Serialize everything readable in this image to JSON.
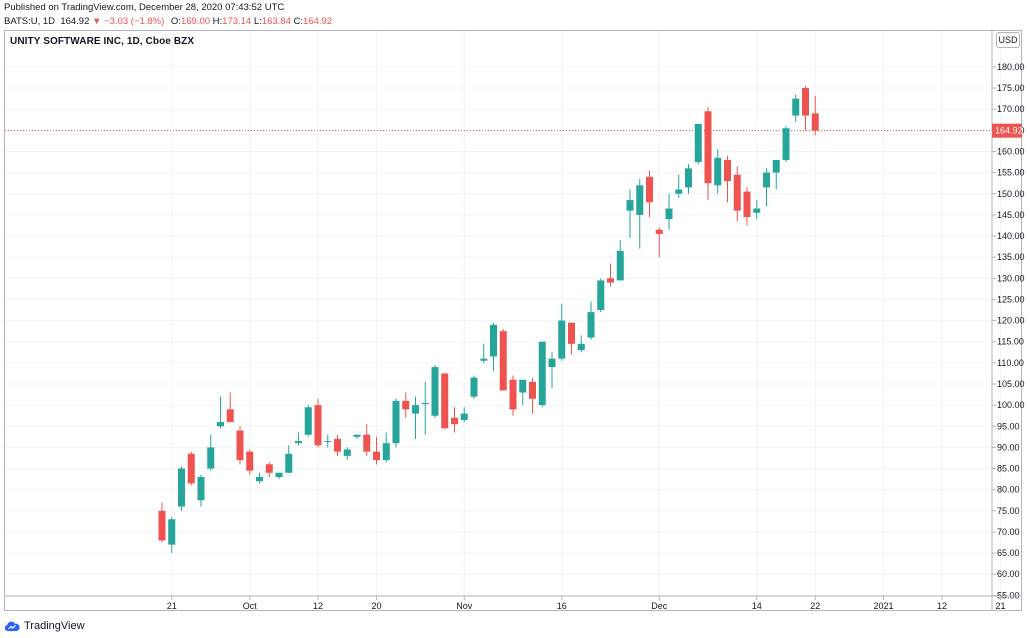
{
  "header": {
    "published": "Published on TradingView.com, December 28, 2020 07:43:52 UTC",
    "symbol": "BATS:U, 1D",
    "last": "164.92",
    "change": "−3.03 (−1.8%)",
    "o_label": "O:",
    "o_value": "169.00",
    "h_label": "H:",
    "h_value": "173.14",
    "l_label": "L:",
    "l_value": "163.84",
    "c_label": "C:",
    "c_value": "164.92"
  },
  "colors": {
    "up": "#26a69a",
    "down": "#ef5350",
    "grid": "#f0f3fa",
    "price_line": "#ef5350"
  },
  "chart_data": {
    "type": "candlestick",
    "title": "UNITY SOFTWARE INC, 1D, Cboe BZX",
    "currency": "USD",
    "last_price": 164.92,
    "last_price_label": "164.92",
    "ylim": [
      54,
      184
    ],
    "y_ticks": [
      55,
      60,
      65,
      70,
      75,
      80,
      85,
      90,
      95,
      100,
      105,
      110,
      115,
      120,
      125,
      130,
      135,
      140,
      145,
      150,
      155,
      160,
      165,
      170,
      175,
      180
    ],
    "y_tick_labels": [
      "55.00",
      "60.00",
      "65.00",
      "70.00",
      "75.00",
      "80.00",
      "85.00",
      "90.00",
      "95.00",
      "100.00",
      "105.00",
      "110.00",
      "115.00",
      "120.00",
      "125.00",
      "130.00",
      "135.00",
      "140.00",
      "145.00",
      "150.00",
      "155.00",
      "160.00",
      "165.00",
      "170.00",
      "175.00",
      "180.00"
    ],
    "x_ticks": [
      {
        "i": 1,
        "label": "21"
      },
      {
        "i": 9,
        "label": "Oct"
      },
      {
        "i": 16,
        "label": "12"
      },
      {
        "i": 22,
        "label": "20"
      },
      {
        "i": 31,
        "label": "Nov"
      },
      {
        "i": 41,
        "label": "16"
      },
      {
        "i": 51,
        "label": "Dec"
      },
      {
        "i": 61,
        "label": "14"
      },
      {
        "i": 67,
        "label": "22"
      },
      {
        "i": 74,
        "label": "2021"
      },
      {
        "i": 80,
        "label": "12"
      },
      {
        "i": 86,
        "label": "21"
      }
    ],
    "grid": true,
    "candles": [
      {
        "o": 75,
        "h": 77,
        "l": 67.5,
        "c": 68
      },
      {
        "o": 67,
        "h": 73.5,
        "l": 65,
        "c": 73
      },
      {
        "o": 76,
        "h": 85.5,
        "l": 75,
        "c": 85
      },
      {
        "o": 88.5,
        "h": 89,
        "l": 81,
        "c": 81.5
      },
      {
        "o": 77.5,
        "h": 83.5,
        "l": 76,
        "c": 83
      },
      {
        "o": 85,
        "h": 93,
        "l": 84.5,
        "c": 90
      },
      {
        "o": 95,
        "h": 102,
        "l": 94.5,
        "c": 96
      },
      {
        "o": 99,
        "h": 103,
        "l": 97,
        "c": 96
      },
      {
        "o": 94,
        "h": 95,
        "l": 86,
        "c": 87
      },
      {
        "o": 89,
        "h": 89.5,
        "l": 83.5,
        "c": 84.5
      },
      {
        "o": 82,
        "h": 84,
        "l": 81.5,
        "c": 83
      },
      {
        "o": 86,
        "h": 86.5,
        "l": 83,
        "c": 84
      },
      {
        "o": 83,
        "h": 84,
        "l": 82.5,
        "c": 84
      },
      {
        "o": 84,
        "h": 90.5,
        "l": 84,
        "c": 88.5
      },
      {
        "o": 91,
        "h": 93.5,
        "l": 90.5,
        "c": 91.5
      },
      {
        "o": 93,
        "h": 100,
        "l": 92.5,
        "c": 99.5
      },
      {
        "o": 100,
        "h": 101.5,
        "l": 90,
        "c": 90.5
      },
      {
        "o": 91.5,
        "h": 93,
        "l": 90,
        "c": 91.5
      },
      {
        "o": 92,
        "h": 93,
        "l": 88,
        "c": 89
      },
      {
        "o": 88,
        "h": 90,
        "l": 87,
        "c": 89.5
      },
      {
        "o": 92.5,
        "h": 93,
        "l": 92,
        "c": 93
      },
      {
        "o": 93,
        "h": 95.5,
        "l": 88,
        "c": 89
      },
      {
        "o": 89,
        "h": 92.5,
        "l": 86,
        "c": 87
      },
      {
        "o": 87,
        "h": 93.5,
        "l": 86.5,
        "c": 91
      },
      {
        "o": 91,
        "h": 101.5,
        "l": 90,
        "c": 101
      },
      {
        "o": 101,
        "h": 103,
        "l": 97,
        "c": 99
      },
      {
        "o": 98,
        "h": 102,
        "l": 92,
        "c": 100
      },
      {
        "o": 100.5,
        "h": 105.5,
        "l": 93,
        "c": 100.5
      },
      {
        "o": 97.5,
        "h": 109.5,
        "l": 97,
        "c": 109
      },
      {
        "o": 107.5,
        "h": 107.5,
        "l": 94.5,
        "c": 94.5
      },
      {
        "o": 97,
        "h": 99.5,
        "l": 93.5,
        "c": 95.5
      },
      {
        "o": 96.5,
        "h": 99.5,
        "l": 96,
        "c": 98
      },
      {
        "o": 102,
        "h": 107,
        "l": 101.5,
        "c": 106.5
      },
      {
        "o": 110.5,
        "h": 114.5,
        "l": 110,
        "c": 111
      },
      {
        "o": 111.5,
        "h": 119.5,
        "l": 108,
        "c": 119
      },
      {
        "o": 117.5,
        "h": 118,
        "l": 103.5,
        "c": 103.5
      },
      {
        "o": 106,
        "h": 107,
        "l": 97.5,
        "c": 99
      },
      {
        "o": 103,
        "h": 106,
        "l": 100,
        "c": 106
      },
      {
        "o": 105.5,
        "h": 106.5,
        "l": 98,
        "c": 101.5
      },
      {
        "o": 100,
        "h": 115,
        "l": 99.5,
        "c": 115
      },
      {
        "o": 109,
        "h": 112.5,
        "l": 104,
        "c": 111
      },
      {
        "o": 111,
        "h": 124,
        "l": 110.5,
        "c": 120
      },
      {
        "o": 119.5,
        "h": 119.5,
        "l": 112,
        "c": 114.5
      },
      {
        "o": 113,
        "h": 116.5,
        "l": 112.5,
        "c": 114.5
      },
      {
        "o": 116,
        "h": 124.5,
        "l": 115.5,
        "c": 122
      },
      {
        "o": 122.5,
        "h": 130,
        "l": 122,
        "c": 129.5
      },
      {
        "o": 130,
        "h": 133.5,
        "l": 128,
        "c": 129
      },
      {
        "o": 129.5,
        "h": 139,
        "l": 129.5,
        "c": 136.5
      },
      {
        "o": 146,
        "h": 151,
        "l": 139.5,
        "c": 148.5
      },
      {
        "o": 145,
        "h": 153.5,
        "l": 137,
        "c": 152
      },
      {
        "o": 154,
        "h": 155.5,
        "l": 144.5,
        "c": 148
      },
      {
        "o": 141.5,
        "h": 142,
        "l": 135,
        "c": 140.5
      },
      {
        "o": 144,
        "h": 150,
        "l": 141.5,
        "c": 146.5
      },
      {
        "o": 150,
        "h": 154.5,
        "l": 149,
        "c": 151
      },
      {
        "o": 151.5,
        "h": 157,
        "l": 150,
        "c": 156
      },
      {
        "o": 157.5,
        "h": 166.5,
        "l": 157,
        "c": 166.5
      },
      {
        "o": 169.5,
        "h": 170.5,
        "l": 148.5,
        "c": 152.5
      },
      {
        "o": 152,
        "h": 160.5,
        "l": 150,
        "c": 158.5
      },
      {
        "o": 158,
        "h": 159,
        "l": 148,
        "c": 153
      },
      {
        "o": 154.5,
        "h": 156.5,
        "l": 143.5,
        "c": 146
      },
      {
        "o": 150.5,
        "h": 151.5,
        "l": 142.5,
        "c": 144.5
      },
      {
        "o": 145.5,
        "h": 148.5,
        "l": 144,
        "c": 146.5
      },
      {
        "o": 151.5,
        "h": 156,
        "l": 147,
        "c": 155
      },
      {
        "o": 155,
        "h": 158,
        "l": 151,
        "c": 158
      },
      {
        "o": 158,
        "h": 166,
        "l": 157.5,
        "c": 165.5
      },
      {
        "o": 168.5,
        "h": 173.5,
        "l": 167,
        "c": 172.5
      },
      {
        "o": 175,
        "h": 175.5,
        "l": 165,
        "c": 168.5
      },
      {
        "o": 169,
        "h": 173.14,
        "l": 163.84,
        "c": 164.92
      }
    ]
  },
  "footer": {
    "brand": "TradingView"
  }
}
